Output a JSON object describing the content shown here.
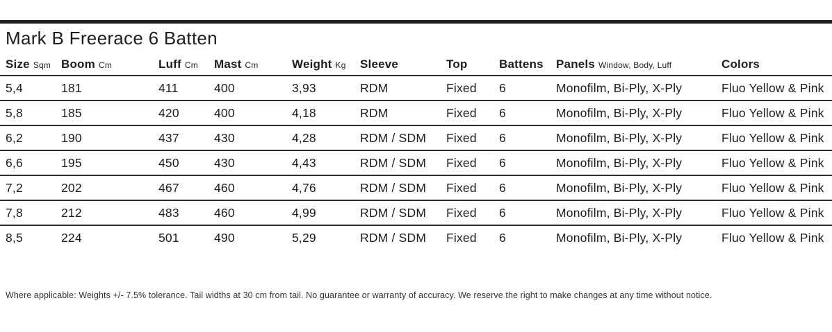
{
  "title": "Mark B Freerace 6 Batten",
  "table": {
    "columns": [
      {
        "label": "Size",
        "unit": "Sqm"
      },
      {
        "label": "Boom",
        "unit": "Cm"
      },
      {
        "label": "Luff",
        "unit": "Cm"
      },
      {
        "label": "Mast",
        "unit": "Cm"
      },
      {
        "label": "Weight",
        "unit": "Kg"
      },
      {
        "label": "Sleeve",
        "unit": ""
      },
      {
        "label": "Top",
        "unit": ""
      },
      {
        "label": "Battens",
        "unit": ""
      },
      {
        "label": "Panels",
        "unit": "Window, Body, Luff"
      },
      {
        "label": "Colors",
        "unit": ""
      }
    ],
    "rows": [
      [
        "5,4",
        "181",
        "411",
        "400",
        "3,93",
        "RDM",
        "Fixed",
        "6",
        "Monofilm, Bi-Ply, X-Ply",
        "Fluo Yellow & Pink"
      ],
      [
        "5,8",
        "185",
        "420",
        "400",
        "4,18",
        "RDM",
        "Fixed",
        "6",
        "Monofilm, Bi-Ply, X-Ply",
        "Fluo Yellow & Pink"
      ],
      [
        "6,2",
        "190",
        "437",
        "430",
        "4,28",
        "RDM / SDM",
        "Fixed",
        "6",
        "Monofilm, Bi-Ply, X-Ply",
        "Fluo Yellow & Pink"
      ],
      [
        "6,6",
        "195",
        "450",
        "430",
        "4,43",
        "RDM / SDM",
        "Fixed",
        "6",
        "Monofilm, Bi-Ply, X-Ply",
        "Fluo Yellow & Pink"
      ],
      [
        "7,2",
        "202",
        "467",
        "460",
        "4,76",
        "RDM / SDM",
        "Fixed",
        "6",
        "Monofilm, Bi-Ply, X-Ply",
        "Fluo Yellow & Pink"
      ],
      [
        "7,8",
        "212",
        "483",
        "460",
        "4,99",
        "RDM / SDM",
        "Fixed",
        "6",
        "Monofilm, Bi-Ply, X-Ply",
        "Fluo Yellow & Pink"
      ],
      [
        "8,5",
        "224",
        "501",
        "490",
        "5,29",
        "RDM / SDM",
        "Fixed",
        "6",
        "Monofilm, Bi-Ply, X-Ply",
        "Fluo Yellow & Pink"
      ]
    ]
  },
  "footnote": "Where applicable: Weights +/- 7.5% tolerance. Tail widths at 30 cm from tail. No guarantee or warranty of accuracy. We reserve the right to make changes at any time without notice.",
  "colors": {
    "text": "#1d1d1b",
    "rule": "#2b2b2b",
    "background": "#ffffff"
  }
}
